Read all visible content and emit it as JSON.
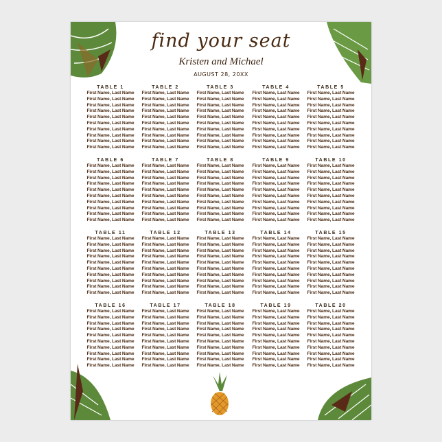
{
  "header": {
    "title": "find your seat",
    "couple": "Kristen and Michael",
    "date": "AUGUST 28, 20XX"
  },
  "colors": {
    "text": "#4a2a12",
    "leaf_green": "#5d8a3a",
    "leaf_dark": "#5a2a18",
    "pineapple": "#e39a2a"
  },
  "decorations": [
    "palm-leaf-top-left",
    "palm-leaf-top-right",
    "palm-leaf-bottom-left",
    "palm-leaf-bottom-right",
    "pineapple"
  ],
  "tables": [
    {
      "label": "TABLE 1",
      "guests": [
        "First Name, Last Name",
        "First Name, Last Name",
        "First Name, Last Name",
        "First Name, Last Name",
        "First Name, Last Name",
        "First Name, Last Name",
        "First Name, Last Name",
        "First Name, Last Name",
        "First Name, Last Name",
        "First Name, Last Name"
      ]
    },
    {
      "label": "TABLE 2",
      "guests": [
        "First Name, Last Name",
        "First Name, Last Name",
        "First Name, Last Name",
        "First Name, Last Name",
        "First Name, Last Name",
        "First Name, Last Name",
        "First Name, Last Name",
        "First Name, Last Name",
        "First Name, Last Name",
        "First Name, Last Name"
      ]
    },
    {
      "label": "TABLE 3",
      "guests": [
        "First Name, Last Name",
        "First Name, Last Name",
        "First Name, Last Name",
        "First Name, Last Name",
        "First Name, Last Name",
        "First Name, Last Name",
        "First Name, Last Name",
        "First Name, Last Name",
        "First Name, Last Name",
        "First Name, Last Name"
      ]
    },
    {
      "label": "TABLE 4",
      "guests": [
        "First Name, Last Name",
        "First Name, Last Name",
        "First Name, Last Name",
        "First Name, Last Name",
        "First Name, Last Name",
        "First Name, Last Name",
        "First Name, Last Name",
        "First Name, Last Name",
        "First Name, Last Name",
        "First Name, Last Name"
      ]
    },
    {
      "label": "TABLE 5",
      "guests": [
        "First Name, Last Name",
        "First Name, Last Name",
        "First Name, Last Name",
        "First Name, Last Name",
        "First Name, Last Name",
        "First Name, Last Name",
        "First Name, Last Name",
        "First Name, Last Name",
        "First Name, Last Name",
        "First Name, Last Name"
      ]
    },
    {
      "label": "TABLE 6",
      "guests": [
        "First Name, Last Name",
        "First Name, Last Name",
        "First Name, Last Name",
        "First Name, Last Name",
        "First Name, Last Name",
        "First Name, Last Name",
        "First Name, Last Name",
        "First Name, Last Name",
        "First Name, Last Name",
        "First Name, Last Name"
      ]
    },
    {
      "label": "TABLE 7",
      "guests": [
        "First Name, Last Name",
        "First Name, Last Name",
        "First Name, Last Name",
        "First Name, Last Name",
        "First Name, Last Name",
        "First Name, Last Name",
        "First Name, Last Name",
        "First Name, Last Name",
        "First Name, Last Name",
        "First Name, Last Name"
      ]
    },
    {
      "label": "TABLE 8",
      "guests": [
        "First Name, Last Name",
        "First Name, Last Name",
        "First Name, Last Name",
        "First Name, Last Name",
        "First Name, Last Name",
        "First Name, Last Name",
        "First Name, Last Name",
        "First Name, Last Name",
        "First Name, Last Name",
        "First Name, Last Name"
      ]
    },
    {
      "label": "TABLE 9",
      "guests": [
        "First Name, Last Name",
        "First Name, Last Name",
        "First Name, Last Name",
        "First Name, Last Name",
        "First Name, Last Name",
        "First Name, Last Name",
        "First Name, Last Name",
        "First Name, Last Name",
        "First Name, Last Name",
        "First Name, Last Name"
      ]
    },
    {
      "label": "TABLE 10",
      "guests": [
        "First Name, Last Name",
        "First Name, Last Name",
        "First Name, Last Name",
        "First Name, Last Name",
        "First Name, Last Name",
        "First Name, Last Name",
        "First Name, Last Name",
        "First Name, Last Name",
        "First Name, Last Name",
        "First Name, Last Name"
      ]
    },
    {
      "label": "TABLE 11",
      "guests": [
        "First Name, Last Name",
        "First Name, Last Name",
        "First Name, Last Name",
        "First Name, Last Name",
        "First Name, Last Name",
        "First Name, Last Name",
        "First Name, Last Name",
        "First Name, Last Name",
        "First Name, Last Name",
        "First Name, Last Name"
      ]
    },
    {
      "label": "TABLE 12",
      "guests": [
        "First Name, Last Name",
        "First Name, Last Name",
        "First Name, Last Name",
        "First Name, Last Name",
        "First Name, Last Name",
        "First Name, Last Name",
        "First Name, Last Name",
        "First Name, Last Name",
        "First Name, Last Name",
        "First Name, Last Name"
      ]
    },
    {
      "label": "TABLE 13",
      "guests": [
        "First Name, Last Name",
        "First Name, Last Name",
        "First Name, Last Name",
        "First Name, Last Name",
        "First Name, Last Name",
        "First Name, Last Name",
        "First Name, Last Name",
        "First Name, Last Name",
        "First Name, Last Name",
        "First Name, Last Name"
      ]
    },
    {
      "label": "TABLE 14",
      "guests": [
        "First Name, Last Name",
        "First Name, Last Name",
        "First Name, Last Name",
        "First Name, Last Name",
        "First Name, Last Name",
        "First Name, Last Name",
        "First Name, Last Name",
        "First Name, Last Name",
        "First Name, Last Name",
        "First Name, Last Name"
      ]
    },
    {
      "label": "TABLE 15",
      "guests": [
        "First Name, Last Name",
        "First Name, Last Name",
        "First Name, Last Name",
        "First Name, Last Name",
        "First Name, Last Name",
        "First Name, Last Name",
        "First Name, Last Name",
        "First Name, Last Name",
        "First Name, Last Name",
        "First Name, Last Name"
      ]
    },
    {
      "label": "TABLE 16",
      "guests": [
        "First Name, Last Name",
        "First Name, Last Name",
        "First Name, Last Name",
        "First Name, Last Name",
        "First Name, Last Name",
        "First Name, Last Name",
        "First Name, Last Name",
        "First Name, Last Name",
        "First Name, Last Name",
        "First Name, Last Name"
      ]
    },
    {
      "label": "TABLE 17",
      "guests": [
        "First Name, Last Name",
        "First Name, Last Name",
        "First Name, Last Name",
        "First Name, Last Name",
        "First Name, Last Name",
        "First Name, Last Name",
        "First Name, Last Name",
        "First Name, Last Name",
        "First Name, Last Name",
        "First Name, Last Name"
      ]
    },
    {
      "label": "TABLE 18",
      "guests": [
        "First Name, Last Name",
        "First Name, Last Name",
        "First Name, Last Name",
        "First Name, Last Name",
        "First Name, Last Name",
        "First Name, Last Name",
        "First Name, Last Name",
        "First Name, Last Name",
        "First Name, Last Name",
        "First Name, Last Name"
      ]
    },
    {
      "label": "TABLE 19",
      "guests": [
        "First Name, Last Name",
        "First Name, Last Name",
        "First Name, Last Name",
        "First Name, Last Name",
        "First Name, Last Name",
        "First Name, Last Name",
        "First Name, Last Name",
        "First Name, Last Name",
        "First Name, Last Name",
        "First Name, Last Name"
      ]
    },
    {
      "label": "TABLE 20",
      "guests": [
        "First Name, Last Name",
        "First Name, Last Name",
        "First Name, Last Name",
        "First Name, Last Name",
        "First Name, Last Name",
        "First Name, Last Name",
        "First Name, Last Name",
        "First Name, Last Name",
        "First Name, Last Name",
        "First Name, Last Name"
      ]
    }
  ]
}
